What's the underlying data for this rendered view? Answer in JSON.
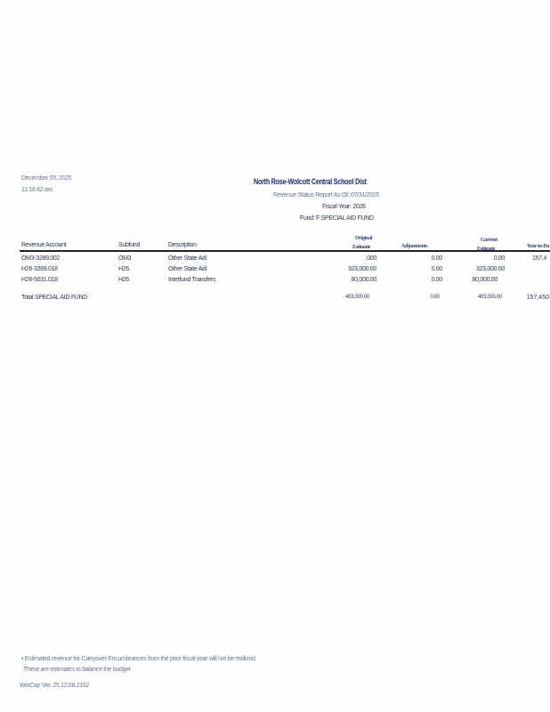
{
  "header": {
    "date": "December 09, 2025",
    "time": "11:16:42 am",
    "district": "North Rose-Wolcott Central School Dist",
    "report": "Revenue Status Report As Of: 07/31/2025",
    "fiscal_year": "Fiscal Year: 2026",
    "fund": "Fund: F SPECIAL AID FUND"
  },
  "columns": {
    "account": "Revenue Account",
    "subfund": "Subfund",
    "description": "Description",
    "original_1": "Original",
    "original_2": "Estimate",
    "adjustments": "Adjustments",
    "current_1": "Current",
    "current_2": "Estimate",
    "ytd": "Year-to-Da"
  },
  "rows": [
    {
      "account": "OM3-3289.002",
      "subfund": "OM3",
      "description": "Other State Aid",
      "original": ".000",
      "adjustments": "0.00",
      "current": "0.00",
      "ytd": "157,4"
    },
    {
      "account": "H26-3289.018",
      "subfund": "H26",
      "description": "Other State Aid",
      "original": "323,000.00",
      "adjustments": "0.00",
      "current": "323,000.00",
      "ytd": ""
    },
    {
      "account": "H26-5031.018",
      "subfund": "H26",
      "description": "Interfund Transfers",
      "original": "80,000.00",
      "adjustments": "0.00",
      "current": "80,000.00",
      "ytd": ""
    }
  ],
  "total": {
    "label": "Total SPECIAL AID FUND",
    "original": "403,000.00",
    "adjustments": "0.00",
    "current": "403,000.00",
    "ytd": "157,450"
  },
  "footer": {
    "note_1": "• Estimated revenue for Carryover Encumbrances from the prior fiscal year will not be realized.",
    "note_2": "These are estimates to balance the budget",
    "version": "WinCap Ver. 25.12.08.2192"
  }
}
